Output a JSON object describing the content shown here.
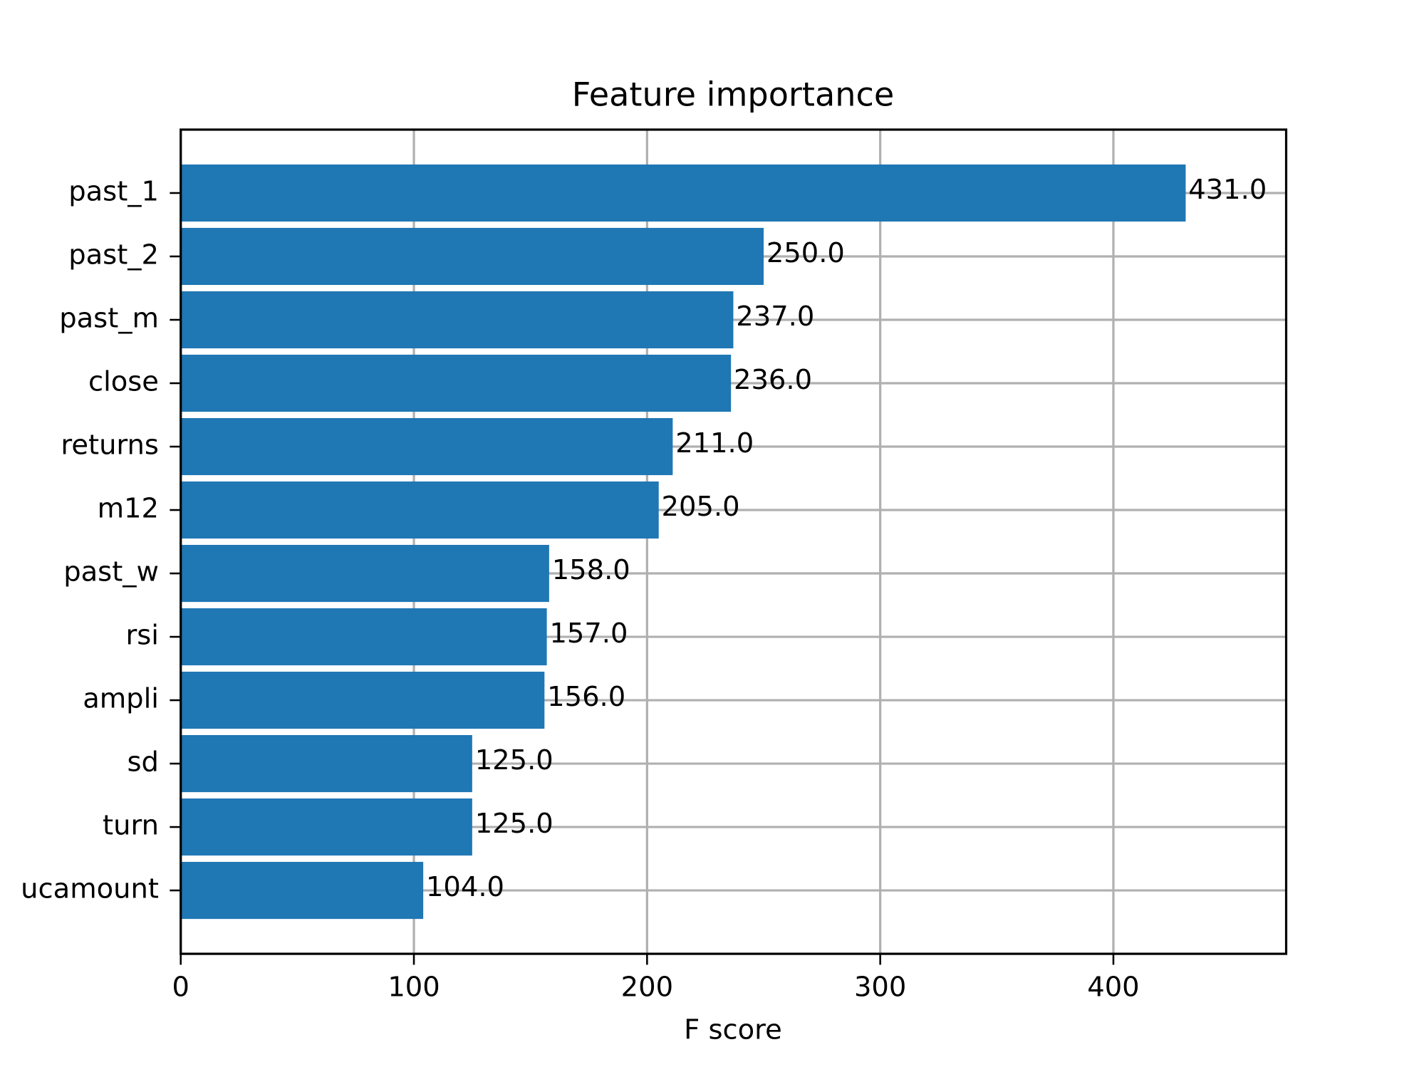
{
  "chart_data": {
    "type": "barh",
    "title": "Feature importance",
    "xlabel": "F score",
    "categories": [
      "past_1",
      "past_2",
      "past_m",
      "close",
      "returns",
      "m12",
      "past_w",
      "rsi",
      "ampli",
      "sd",
      "turn",
      "ucamount"
    ],
    "values": [
      431,
      250,
      237,
      236,
      211,
      205,
      158,
      157,
      156,
      125,
      125,
      104
    ],
    "value_labels": [
      "431.0",
      "250.0",
      "237.0",
      "236.0",
      "211.0",
      "205.0",
      "158.0",
      "157.0",
      "156.0",
      "125.0",
      "125.0",
      "104.0"
    ],
    "color": "#1f77b4",
    "xlim": [
      0,
      474.1
    ],
    "xticks": [
      0,
      100,
      200,
      300,
      400
    ],
    "grid": true
  }
}
